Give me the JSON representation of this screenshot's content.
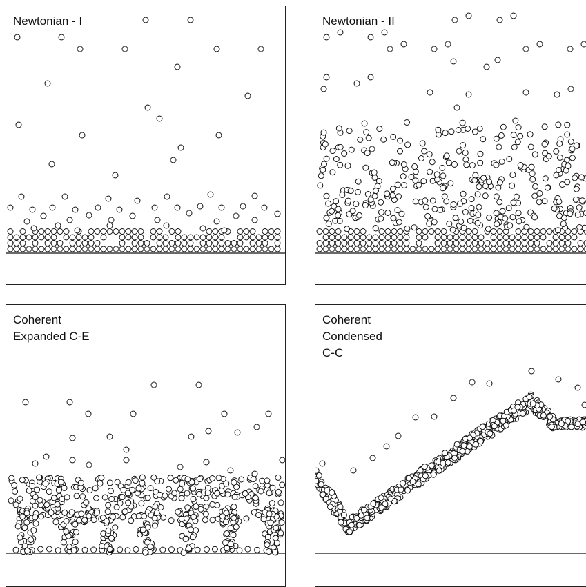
{
  "panels": [
    {
      "id": "newtonian-1",
      "title": "Newtonian - I"
    },
    {
      "id": "newtonian-2",
      "title": "Newtonian - II"
    },
    {
      "id": "coherent-expanded",
      "title": "Coherent\nExpanded C-E"
    },
    {
      "id": "coherent-condensed",
      "title": "Coherent\nCondensed\nC-C"
    }
  ],
  "colors": {
    "particle_stroke": "#111111",
    "particle_fill": "#ffffff",
    "border": "#222222"
  }
}
